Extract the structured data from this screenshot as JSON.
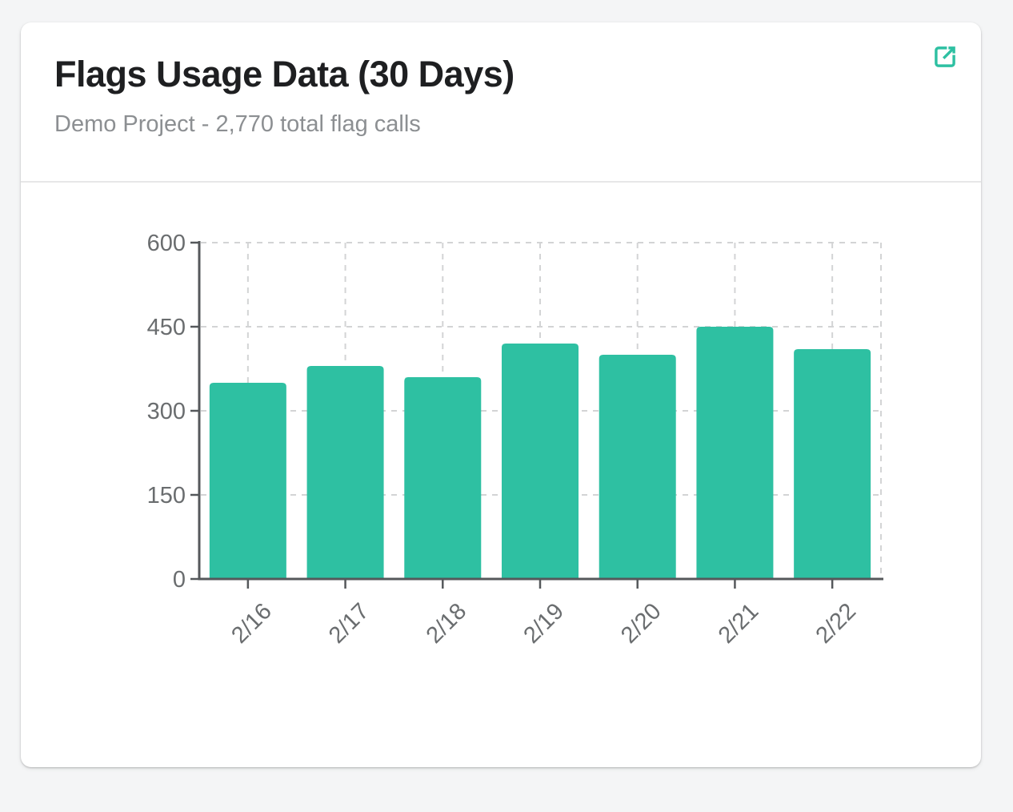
{
  "page": {
    "background_color": "#f4f5f6"
  },
  "card": {
    "title": "Flags Usage Data (30 Days)",
    "subtitle": "Demo Project - 2,770 total flag calls",
    "accent_color": "#2ec0a2",
    "expand_icon": "external-link-icon"
  },
  "chart_data": {
    "type": "bar",
    "title": "Flags Usage Data (30 Days)",
    "subtitle": "Demo Project - 2,770 total flag calls",
    "categories": [
      "2/16",
      "2/17",
      "2/18",
      "2/19",
      "2/20",
      "2/21",
      "2/22"
    ],
    "values": [
      350,
      380,
      360,
      420,
      400,
      450,
      410
    ],
    "total_flag_calls": 2770,
    "xlabel": "",
    "ylabel": "",
    "ylim": [
      0,
      600
    ],
    "yticks": [
      0,
      150,
      300,
      450,
      600
    ],
    "x_tick_rotation": -45,
    "grid": true,
    "grid_style": "dashed",
    "legend": "none",
    "bar_color": "#2ec0a2",
    "colors": {
      "axis": "#55585b",
      "grid": "#d3d4d5",
      "tick_text": "#6a6d6f"
    }
  }
}
